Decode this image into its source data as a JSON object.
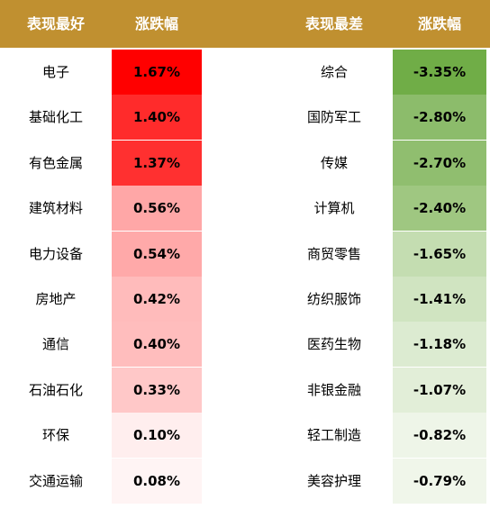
{
  "header": {
    "best_label": "表现最好",
    "best_change_label": "涨跌幅",
    "worst_label": "表现最差",
    "worst_change_label": "涨跌幅"
  },
  "colors": {
    "header_bg": "#c09030",
    "gain_strong": "#ff0000",
    "loss_strong": "#70ad47"
  },
  "chart_data": {
    "type": "table",
    "columns": [
      "表现最好",
      "涨跌幅",
      "表现最差",
      "涨跌幅"
    ],
    "best": [
      {
        "name": "电子",
        "change": "1.67%",
        "value": 1.67,
        "color": "#ff0000"
      },
      {
        "name": "基础化工",
        "change": "1.40%",
        "value": 1.4,
        "color": "#ff2b2b"
      },
      {
        "name": "有色金属",
        "change": "1.37%",
        "value": 1.37,
        "color": "#ff3030"
      },
      {
        "name": "建筑材料",
        "change": "0.56%",
        "value": 0.56,
        "color": "#ffa7a7"
      },
      {
        "name": "电力设备",
        "change": "0.54%",
        "value": 0.54,
        "color": "#ffa9a9"
      },
      {
        "name": "房地产",
        "change": "0.42%",
        "value": 0.42,
        "color": "#ffbbbb"
      },
      {
        "name": "通信",
        "change": "0.40%",
        "value": 0.4,
        "color": "#ffbdbd"
      },
      {
        "name": "石油石化",
        "change": "0.33%",
        "value": 0.33,
        "color": "#ffc8c8"
      },
      {
        "name": "环保",
        "change": "0.10%",
        "value": 0.1,
        "color": "#ffeeee"
      },
      {
        "name": "交通运输",
        "change": "0.08%",
        "value": 0.08,
        "color": "#fff4f4"
      }
    ],
    "worst": [
      {
        "name": "综合",
        "change": "-3.35%",
        "value": -3.35,
        "color": "#70ad47"
      },
      {
        "name": "国防军工",
        "change": "-2.80%",
        "value": -2.8,
        "color": "#8cbc6b"
      },
      {
        "name": "传媒",
        "change": "-2.70%",
        "value": -2.7,
        "color": "#90be6f"
      },
      {
        "name": "计算机",
        "change": "-2.40%",
        "value": -2.4,
        "color": "#9fc781"
      },
      {
        "name": "商贸零售",
        "change": "-1.65%",
        "value": -1.65,
        "color": "#c4ddb1"
      },
      {
        "name": "纺织服饰",
        "change": "-1.41%",
        "value": -1.41,
        "color": "#d0e4c1"
      },
      {
        "name": "医药生物",
        "change": "-1.18%",
        "value": -1.18,
        "color": "#dcebd1"
      },
      {
        "name": "非银金融",
        "change": "-1.07%",
        "value": -1.07,
        "color": "#e2eed8"
      },
      {
        "name": "轻工制造",
        "change": "-0.82%",
        "value": -0.82,
        "color": "#eef5e8"
      },
      {
        "name": "美容护理",
        "change": "-0.79%",
        "value": -0.79,
        "color": "#f0f6ea"
      }
    ]
  }
}
